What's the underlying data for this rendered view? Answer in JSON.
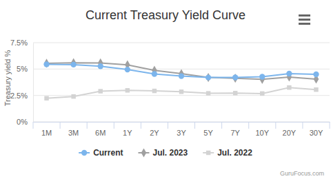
{
  "chart_data": {
    "type": "line",
    "title": "Current Treasury Yield Curve",
    "y_label": "Treasury yield %",
    "credit": "GuruFocus.com",
    "categories": [
      "1M",
      "3M",
      "6M",
      "1Y",
      "2Y",
      "3Y",
      "5Y",
      "7Y",
      "10Y",
      "20Y",
      "30Y"
    ],
    "series": [
      {
        "name": "Current",
        "color": "#7cb5ec",
        "marker": "circle",
        "values": [
          5.45,
          5.42,
          5.27,
          4.95,
          4.53,
          4.33,
          4.2,
          4.21,
          4.27,
          4.57,
          4.5
        ]
      },
      {
        "name": "Jul. 2023",
        "color": "#a0a0a0",
        "marker": "diamond",
        "values": [
          5.55,
          5.6,
          5.58,
          5.4,
          4.88,
          4.56,
          4.2,
          4.13,
          4.02,
          4.24,
          4.05
        ]
      },
      {
        "name": "Jul. 2022",
        "color": "#d3d3d3",
        "marker": "square",
        "values": [
          2.23,
          2.4,
          2.9,
          2.98,
          2.93,
          2.85,
          2.7,
          2.72,
          2.68,
          3.25,
          3.05
        ]
      }
    ],
    "ylim": [
      0,
      7.5
    ],
    "yticks": [
      {
        "value": 0,
        "label": "0%"
      },
      {
        "value": 2.5,
        "label": "2.5%"
      },
      {
        "value": 5,
        "label": "5%"
      },
      {
        "value": 7.5,
        "label": "7.5%"
      }
    ],
    "grid": true,
    "legend": "bottom"
  }
}
